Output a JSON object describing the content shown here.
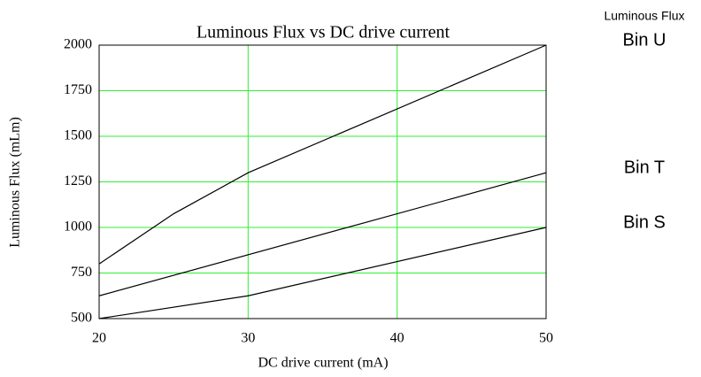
{
  "chart_data": {
    "type": "line",
    "title": "Luminous Flux vs DC drive current",
    "xlabel": "DC drive current (mA)",
    "ylabel": "Luminous Flux (mLm)",
    "legend_title": "Luminous Flux",
    "xlim": [
      20,
      50
    ],
    "xticks": [
      20,
      30,
      40,
      50
    ],
    "ylim": [
      500,
      2000
    ],
    "yticks": [
      500,
      750,
      1000,
      1250,
      1500,
      1750,
      2000
    ],
    "grid": true,
    "grid_color": "#33ee33",
    "series": [
      {
        "name": "Bin U",
        "color": "#000000",
        "x": [
          20,
          25,
          30,
          50
        ],
        "values": [
          800,
          1075,
          1300,
          2000
        ]
      },
      {
        "name": "Bin T",
        "color": "#000000",
        "x": [
          20,
          50
        ],
        "values": [
          625,
          1300
        ]
      },
      {
        "name": "Bin S",
        "color": "#000000",
        "x": [
          20,
          30,
          50
        ],
        "values": [
          500,
          625,
          1000
        ]
      }
    ]
  }
}
